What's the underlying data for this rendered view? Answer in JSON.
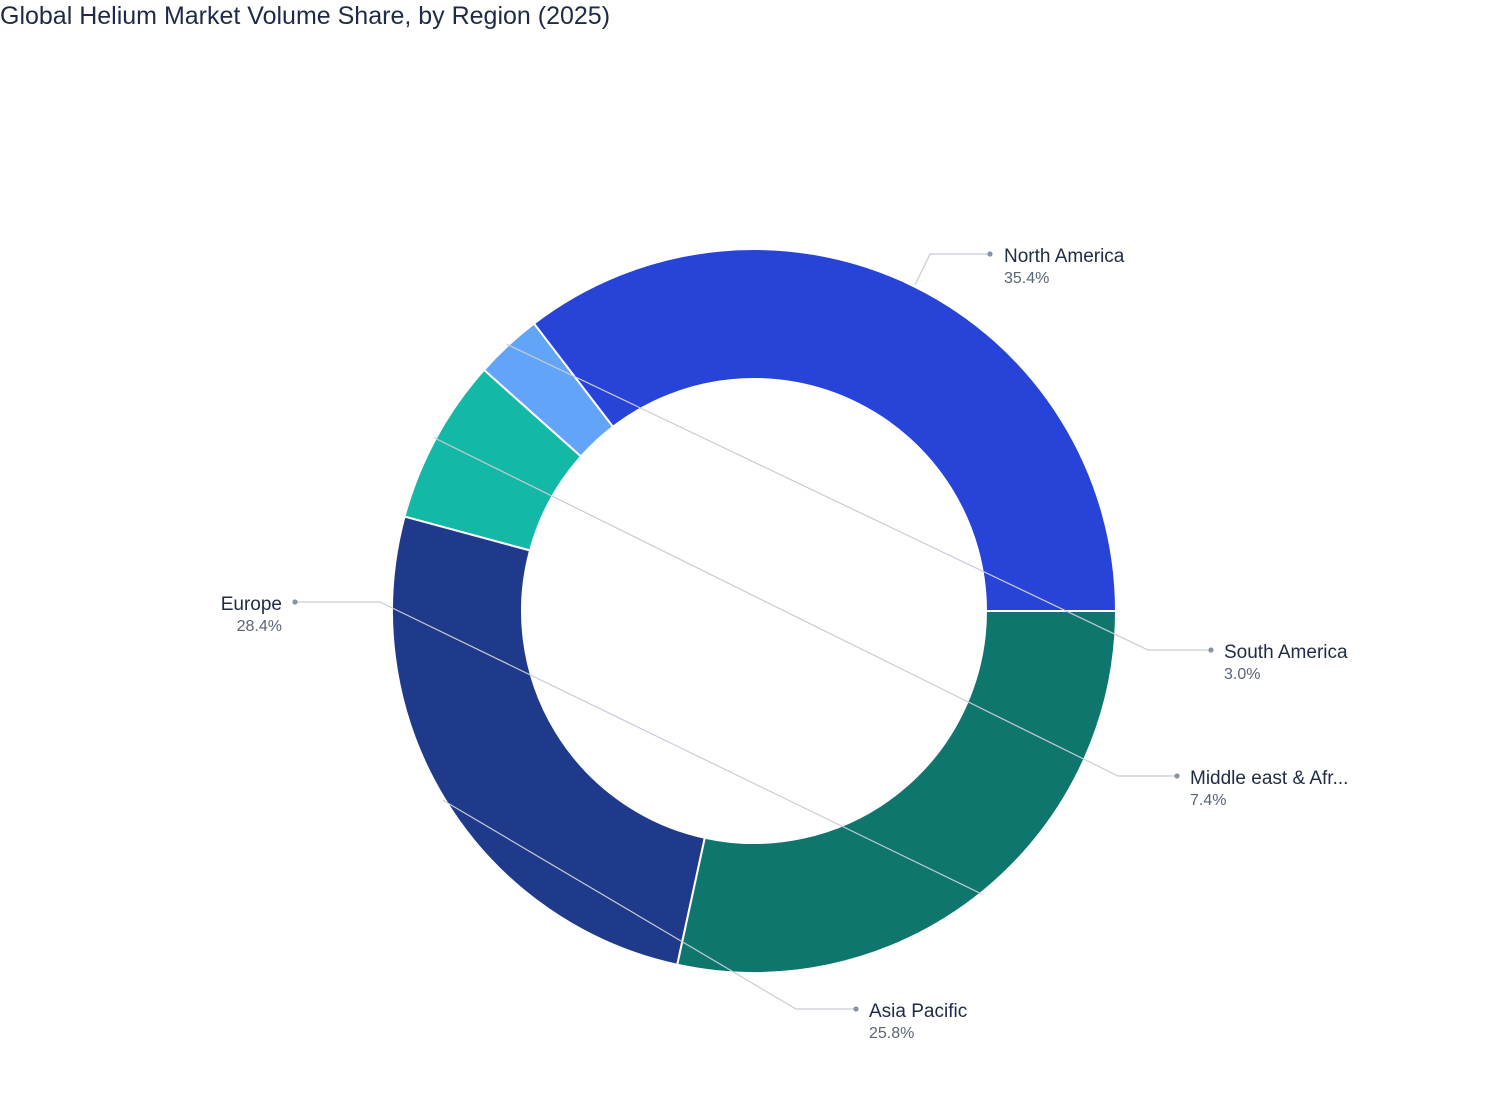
{
  "chart_data": {
    "type": "pie",
    "title": "Global Helium Market Volume Share, by Region (2025)",
    "hole": true,
    "slices": [
      {
        "label": "North America",
        "value": 35.4,
        "display_value": "35.4%",
        "color": "#2844d8"
      },
      {
        "label": "South America",
        "value": 3.0,
        "display_value": "3.0%",
        "color": "#62a4f8"
      },
      {
        "label": "Middle east & Afr...",
        "value": 7.4,
        "display_value": "7.4%",
        "color": "#13b8a6"
      },
      {
        "label": "Asia Pacific",
        "value": 25.8,
        "display_value": "25.8%",
        "color": "#1f3a8a"
      },
      {
        "label": "Europe",
        "value": 28.4,
        "display_value": "28.4%",
        "color": "#0f766e"
      }
    ]
  }
}
